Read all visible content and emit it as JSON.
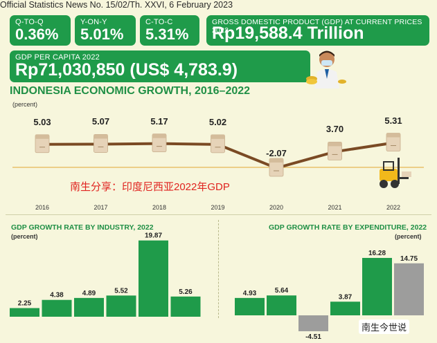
{
  "header": {
    "news_line": "Official Statistics News No. 15/02/Th. XXVI, 6 February 2023"
  },
  "cards": {
    "qtoq": {
      "label": "Q-TO-Q",
      "value": "0.36%"
    },
    "yony": {
      "label": "Y-ON-Y",
      "value": "5.01%"
    },
    "ctoc": {
      "label": "C-TO-C",
      "value": "5.31%"
    },
    "gdp": {
      "label": "GROSS DOMESTIC PRODUCT (GDP) AT CURRENT PRICES 2022",
      "value": "Rp19,588.4 Trillion"
    },
    "per_capita": {
      "label": "GDP PER CAPITA 2022",
      "value": "Rp71,030,850 (US$ 4,783.9)"
    }
  },
  "watermark": "南生分享：印度尼西亚2022年GDP",
  "watermark_account": "南生今世说",
  "colors": {
    "green": "#1f9b4a",
    "line": "#7a4a24",
    "gray_bar": "#9d9d9c",
    "box": "#e6d3b8"
  },
  "chart_data": [
    {
      "type": "line",
      "title": "INDONESIA ECONOMIC GROWTH, 2016–2022",
      "unit": "(percent)",
      "x": [
        "2016",
        "2017",
        "2018",
        "2019",
        "2020",
        "2021",
        "2022"
      ],
      "values": [
        5.03,
        5.07,
        5.17,
        5.02,
        -2.07,
        3.7,
        5.31
      ],
      "value_labels": [
        "5.03",
        "5.07",
        "5.17",
        "5.02",
        "-2.07",
        "3.70",
        "5.31"
      ],
      "ylim": [
        -3,
        6
      ]
    },
    {
      "type": "bar",
      "title": "GDP GROWTH RATE BY INDUSTRY, 2022",
      "unit": "(percent)",
      "values": [
        2.25,
        4.38,
        4.89,
        5.52,
        19.87,
        5.26
      ],
      "value_labels": [
        "2.25",
        "4.38",
        "4.89",
        "5.52",
        "19.87",
        "5.26"
      ],
      "ylim": [
        0,
        20
      ]
    },
    {
      "type": "bar",
      "title": "GDP GROWTH RATE BY EXPENDITURE, 2022",
      "unit": "(percent)",
      "values": [
        4.93,
        5.64,
        -4.51,
        3.87,
        16.28,
        14.75
      ],
      "value_labels": [
        "4.93",
        "5.64",
        "-4.51",
        "3.87",
        "16.28",
        "14.75"
      ],
      "bar_colors": [
        "#1f9b4a",
        "#1f9b4a",
        "#9d9d9c",
        "#1f9b4a",
        "#1f9b4a",
        "#9d9d9c"
      ],
      "ylim": [
        -5,
        17
      ]
    }
  ]
}
